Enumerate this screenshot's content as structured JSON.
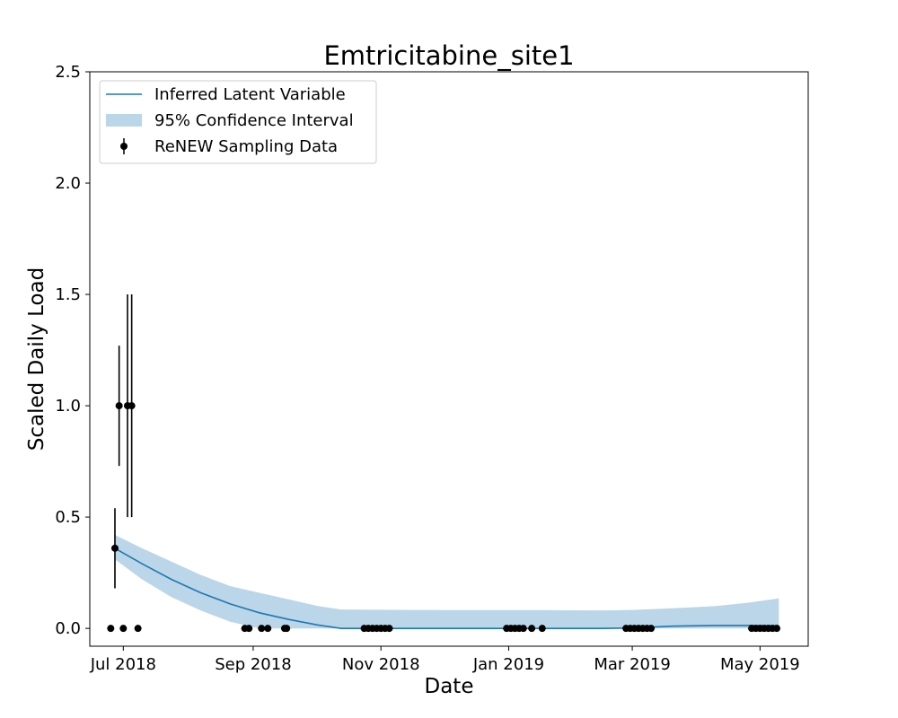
{
  "chart_data": {
    "type": "line",
    "title": "Emtricitabine_site1",
    "xlabel": "Date",
    "ylabel": "Scaled Daily Load",
    "xlim": [
      "2018-06-15",
      "2019-05-24"
    ],
    "ylim": [
      -0.08,
      2.5
    ],
    "x_ticks": [
      {
        "date": "2018-07-01",
        "label": "Jul 2018"
      },
      {
        "date": "2018-09-01",
        "label": "Sep 2018"
      },
      {
        "date": "2018-11-01",
        "label": "Nov 2018"
      },
      {
        "date": "2019-01-01",
        "label": "Jan 2019"
      },
      {
        "date": "2019-03-01",
        "label": "Mar 2019"
      },
      {
        "date": "2019-05-01",
        "label": "May 2019"
      }
    ],
    "y_ticks": [
      {
        "value": 0.0,
        "label": "0.0"
      },
      {
        "value": 0.5,
        "label": "0.5"
      },
      {
        "value": 1.0,
        "label": "1.0"
      },
      {
        "value": 1.5,
        "label": "1.5"
      },
      {
        "value": 2.0,
        "label": "2.0"
      },
      {
        "value": 2.5,
        "label": "2.5"
      }
    ],
    "grid": false,
    "legend": {
      "placement": "top-left",
      "entries": [
        {
          "label": "Inferred Latent Variable",
          "kind": "line"
        },
        {
          "label": "95% Confidence Interval",
          "kind": "band"
        },
        {
          "label": "ReNEW Sampling Data",
          "kind": "errorbar"
        }
      ]
    },
    "colors": {
      "line": "#1f77b4",
      "band": "#1f77b4",
      "points": "#000000"
    },
    "latent": [
      {
        "x": "2018-06-27",
        "y": 0.36,
        "lo": 0.31,
        "hi": 0.42
      },
      {
        "x": "2018-07-10",
        "y": 0.29,
        "lo": 0.22,
        "hi": 0.36
      },
      {
        "x": "2018-07-24",
        "y": 0.22,
        "lo": 0.14,
        "hi": 0.3
      },
      {
        "x": "2018-08-07",
        "y": 0.16,
        "lo": 0.08,
        "hi": 0.24
      },
      {
        "x": "2018-08-21",
        "y": 0.11,
        "lo": 0.03,
        "hi": 0.19
      },
      {
        "x": "2018-09-04",
        "y": 0.07,
        "lo": 0.0,
        "hi": 0.16
      },
      {
        "x": "2018-09-18",
        "y": 0.04,
        "lo": 0.0,
        "hi": 0.13
      },
      {
        "x": "2018-10-02",
        "y": 0.015,
        "lo": 0.0,
        "hi": 0.1
      },
      {
        "x": "2018-10-13",
        "y": 0.0,
        "lo": 0.0,
        "hi": 0.085
      },
      {
        "x": "2018-11-15",
        "y": 0.0,
        "lo": 0.0,
        "hi": 0.083
      },
      {
        "x": "2018-12-15",
        "y": 0.0,
        "lo": 0.0,
        "hi": 0.082
      },
      {
        "x": "2019-01-15",
        "y": 0.0,
        "lo": 0.0,
        "hi": 0.082
      },
      {
        "x": "2019-02-15",
        "y": 0.0,
        "lo": 0.0,
        "hi": 0.081
      },
      {
        "x": "2019-03-01",
        "y": 0.002,
        "lo": 0.0,
        "hi": 0.083
      },
      {
        "x": "2019-03-20",
        "y": 0.01,
        "lo": 0.0,
        "hi": 0.09
      },
      {
        "x": "2019-04-10",
        "y": 0.013,
        "lo": 0.0,
        "hi": 0.1
      },
      {
        "x": "2019-04-25",
        "y": 0.013,
        "lo": 0.0,
        "hi": 0.115
      },
      {
        "x": "2019-05-10",
        "y": 0.012,
        "lo": 0.0,
        "hi": 0.135
      }
    ],
    "samples": [
      {
        "x": "2018-06-25",
        "y": 0.0
      },
      {
        "x": "2018-06-27",
        "y": 0.36,
        "err": 0.18
      },
      {
        "x": "2018-06-29",
        "y": 1.0,
        "err": 0.27
      },
      {
        "x": "2018-07-01",
        "y": 0.0
      },
      {
        "x": "2018-07-03",
        "y": 1.0,
        "err": 0.5
      },
      {
        "x": "2018-07-05",
        "y": 1.0,
        "err": 0.5
      },
      {
        "x": "2018-07-08",
        "y": 0.0
      },
      {
        "x": "2018-08-28",
        "y": 0.0
      },
      {
        "x": "2018-08-30",
        "y": 0.0
      },
      {
        "x": "2018-09-05",
        "y": 0.0
      },
      {
        "x": "2018-09-08",
        "y": 0.0
      },
      {
        "x": "2018-09-16",
        "y": 0.0
      },
      {
        "x": "2018-09-17",
        "y": 0.0
      },
      {
        "x": "2018-10-24",
        "y": 0.0
      },
      {
        "x": "2018-10-26",
        "y": 0.0
      },
      {
        "x": "2018-10-28",
        "y": 0.0
      },
      {
        "x": "2018-10-30",
        "y": 0.0
      },
      {
        "x": "2018-11-01",
        "y": 0.0
      },
      {
        "x": "2018-11-03",
        "y": 0.0
      },
      {
        "x": "2018-11-05",
        "y": 0.0
      },
      {
        "x": "2018-12-31",
        "y": 0.0
      },
      {
        "x": "2019-01-02",
        "y": 0.0
      },
      {
        "x": "2019-01-04",
        "y": 0.0
      },
      {
        "x": "2019-01-06",
        "y": 0.0
      },
      {
        "x": "2019-01-08",
        "y": 0.0
      },
      {
        "x": "2019-01-12",
        "y": 0.0
      },
      {
        "x": "2019-01-17",
        "y": 0.0
      },
      {
        "x": "2019-02-26",
        "y": 0.0
      },
      {
        "x": "2019-02-28",
        "y": 0.0
      },
      {
        "x": "2019-03-02",
        "y": 0.0
      },
      {
        "x": "2019-03-04",
        "y": 0.0
      },
      {
        "x": "2019-03-06",
        "y": 0.0
      },
      {
        "x": "2019-03-08",
        "y": 0.0
      },
      {
        "x": "2019-03-10",
        "y": 0.0
      },
      {
        "x": "2019-04-27",
        "y": 0.0
      },
      {
        "x": "2019-04-29",
        "y": 0.0
      },
      {
        "x": "2019-05-01",
        "y": 0.0
      },
      {
        "x": "2019-05-03",
        "y": 0.0
      },
      {
        "x": "2019-05-05",
        "y": 0.0
      },
      {
        "x": "2019-05-07",
        "y": 0.0
      },
      {
        "x": "2019-05-09",
        "y": 0.0
      }
    ]
  }
}
